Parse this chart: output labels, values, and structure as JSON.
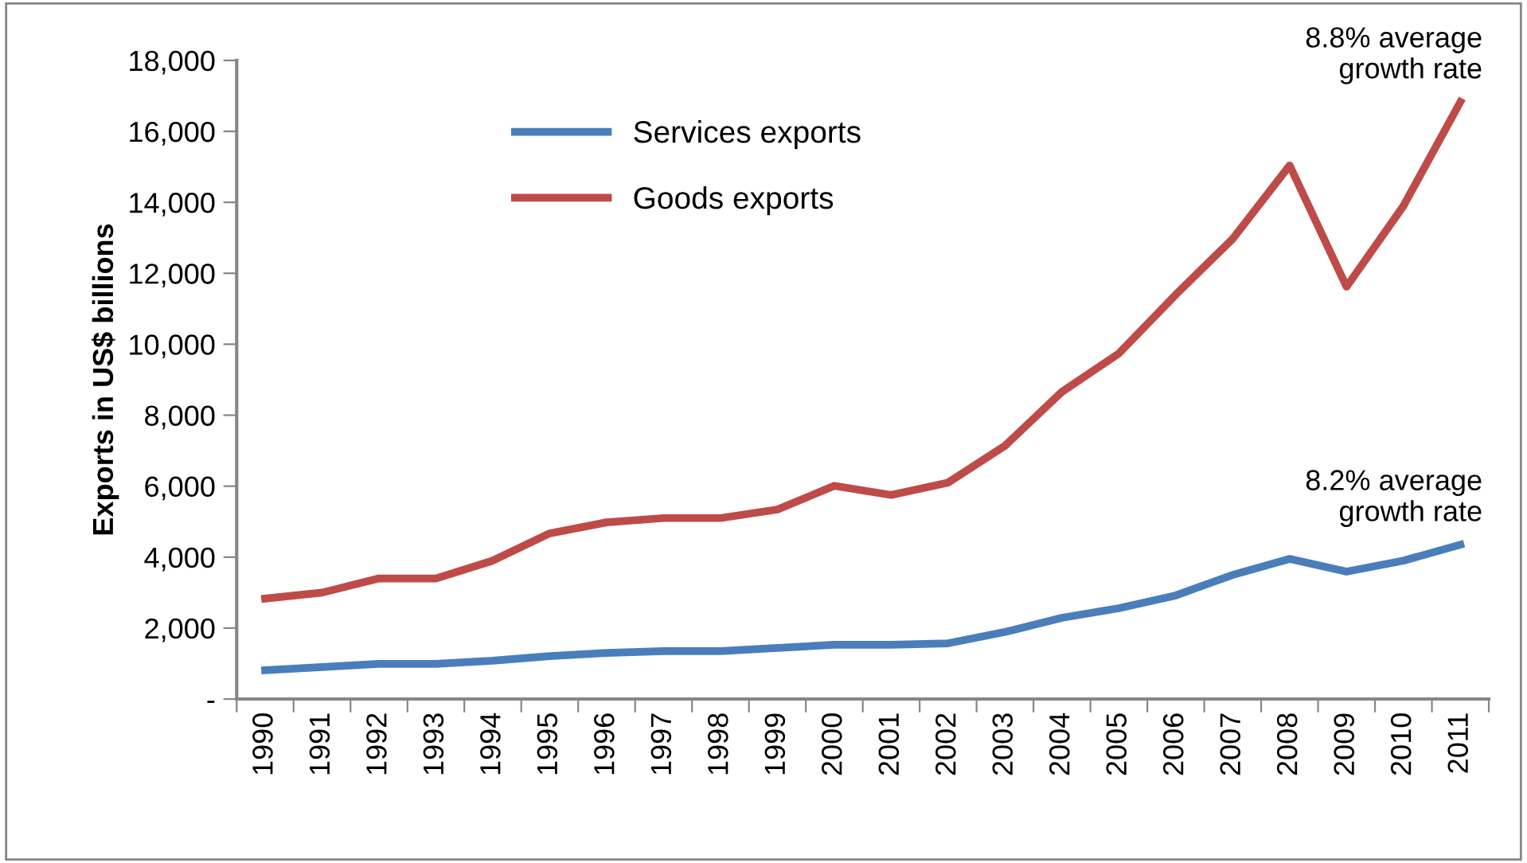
{
  "chart_data": {
    "type": "line",
    "ylabel": "Exports in US$ billions",
    "categories": [
      "1990",
      "1991",
      "1992",
      "1993",
      "1994",
      "1995",
      "1996",
      "1997",
      "1998",
      "1999",
      "2000",
      "2001",
      "2002",
      "2003",
      "2004",
      "2005",
      "2006",
      "2007",
      "2008",
      "2009",
      "2010",
      "2011"
    ],
    "series": [
      {
        "name": "Services exports",
        "color": "#4a7ebb",
        "values": [
          810,
          900,
          990,
          990,
          1080,
          1210,
          1300,
          1350,
          1350,
          1440,
          1530,
          1530,
          1570,
          1890,
          2290,
          2560,
          2920,
          3500,
          3950,
          3590,
          3900,
          4350
        ]
      },
      {
        "name": "Goods exports",
        "color": "#be4b48",
        "values": [
          2830,
          3000,
          3400,
          3400,
          3900,
          4670,
          4980,
          5100,
          5100,
          5340,
          6010,
          5750,
          6100,
          7140,
          8660,
          9740,
          11400,
          12970,
          15040,
          11620,
          13900,
          16830
        ]
      }
    ],
    "ylim": [
      0,
      18000
    ],
    "yticks": [
      {
        "value": 0,
        "label": "-"
      },
      {
        "value": 2000,
        "label": "2,000"
      },
      {
        "value": 4000,
        "label": "4,000"
      },
      {
        "value": 6000,
        "label": "6,000"
      },
      {
        "value": 8000,
        "label": "8,000"
      },
      {
        "value": 10000,
        "label": "10,000"
      },
      {
        "value": 12000,
        "label": "12,000"
      },
      {
        "value": 14000,
        "label": "14,000"
      },
      {
        "value": 16000,
        "label": "16,000"
      },
      {
        "value": 18000,
        "label": "18,000"
      }
    ],
    "annotations": [
      {
        "text": "8.8% average\ngrowth rate",
        "x": "2011",
        "y": 16830
      },
      {
        "text": "8.2% average\ngrowth rate",
        "x": "2011",
        "y": 4350
      }
    ],
    "legend": "top left",
    "grid": false,
    "marker": "none",
    "line_style": "solid"
  }
}
